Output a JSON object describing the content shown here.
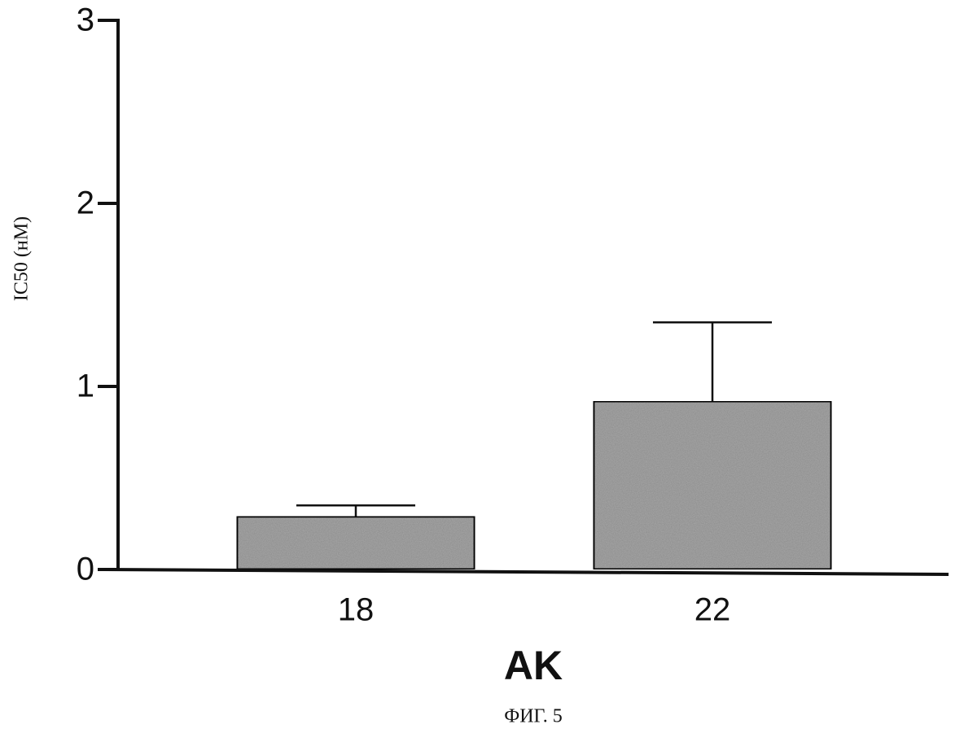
{
  "chart_data": {
    "type": "bar",
    "caption": "ФИГ. 5",
    "ylabel": "IC50 (нМ)",
    "xlabel": "AK",
    "categories": [
      "18",
      "22"
    ],
    "values": [
      0.29,
      0.92
    ],
    "errors": [
      0.06,
      0.43
    ],
    "color": "#a8a8a8",
    "ylim": [
      0,
      3
    ],
    "yticks": [
      0,
      1,
      2,
      3
    ],
    "grid": false
  }
}
